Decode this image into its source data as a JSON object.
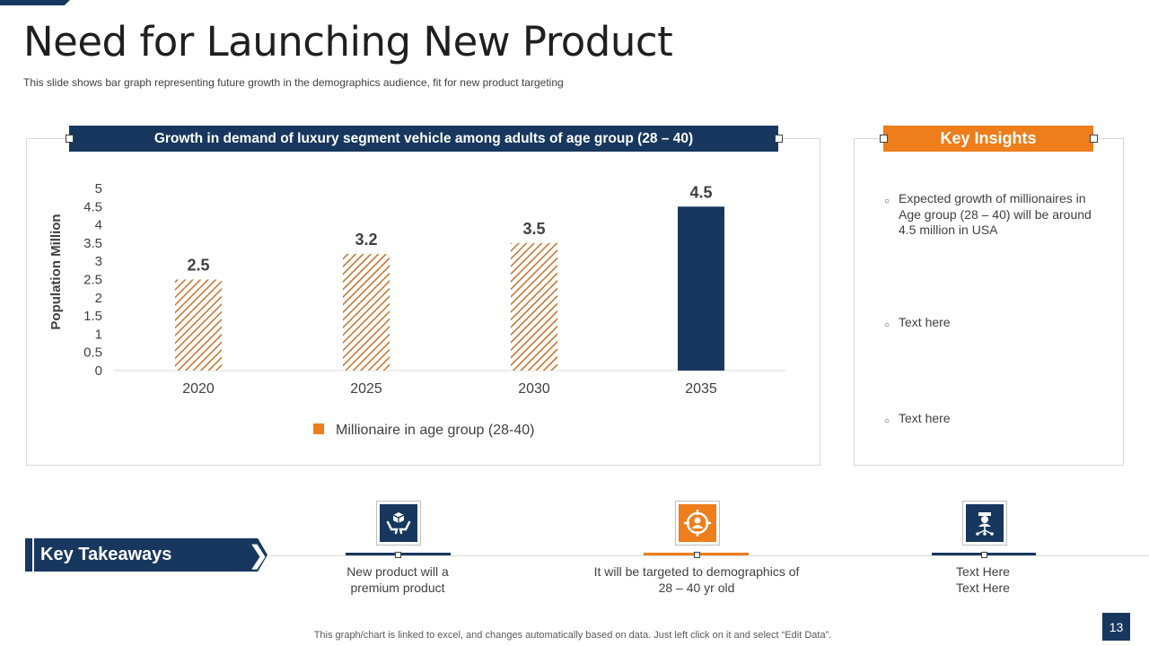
{
  "slide": {
    "title": "Need for Launching New Product",
    "subtitle": "This slide shows bar graph representing  future growth  in the demographics  audience,  fit for new product targeting"
  },
  "chart_panel": {
    "header": "Growth  in demand of luxury segment vehicle among adults of age group (28 – 40)"
  },
  "chart_data": {
    "type": "bar",
    "title": "Growth in demand of luxury segment vehicle among adults of age group (28 – 40)",
    "categories": [
      "2020",
      "2025",
      "2030",
      "2035"
    ],
    "series": [
      {
        "name": "Millionaire in age group (28-40)",
        "values": [
          2.5,
          3.2,
          3.5,
          4.5
        ]
      }
    ],
    "data_labels": [
      "2.5",
      "3.2",
      "3.5",
      "4.5"
    ],
    "ylabel": "Population  Million",
    "xlabel": "",
    "ylim": [
      0,
      5
    ],
    "yticks": [
      "0",
      "0.5",
      "1",
      "1.5",
      "2",
      "2.5",
      "3",
      "3.5",
      "4",
      "4.5",
      "5"
    ],
    "ytick_values": [
      0,
      0.5,
      1,
      1.5,
      2,
      2.5,
      3,
      3.5,
      4,
      4.5,
      5
    ],
    "legend": "bottom",
    "colors": {
      "hatch": "#c5722a",
      "highlight": "#17375e",
      "legend": "#ee7d1b"
    }
  },
  "insights": {
    "header": "Key Insights",
    "items": [
      "Expected growth of millionaires in Age group (28 – 40) will be around 4.5 million in USA",
      "Text here",
      "Text here"
    ]
  },
  "takeaways": {
    "label": "Key Takeaways",
    "items": [
      {
        "icon": "hands-box-icon",
        "line1": "New product will a",
        "line2": "premium product"
      },
      {
        "icon": "target-user-icon",
        "line1": "It will be targeted to demographics of",
        "line2": "28 – 40 yr old"
      },
      {
        "icon": "network-user-icon",
        "line1": "Text Here",
        "line2": "Text Here"
      }
    ]
  },
  "footer": {
    "note": "This graph/chart is linked to excel,  and changes automatically based on data. Just left click on it and select “Edit Data”.",
    "page_number": "13"
  },
  "colors": {
    "navy": "#17375e",
    "orange": "#ee7d1b",
    "text": "#404040",
    "border": "#d9d9d9"
  }
}
